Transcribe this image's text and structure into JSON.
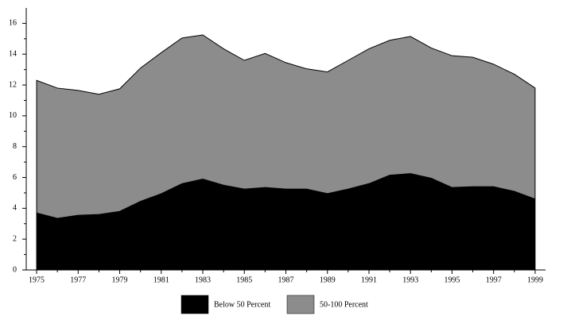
{
  "chart_data": {
    "type": "stacked_area",
    "x": [
      1975,
      1976,
      1977,
      1978,
      1979,
      1980,
      1981,
      1982,
      1983,
      1984,
      1985,
      1986,
      1987,
      1988,
      1989,
      1990,
      1991,
      1992,
      1993,
      1994,
      1995,
      1996,
      1997,
      1998,
      1999
    ],
    "series": [
      {
        "name": "Below 50 Percent",
        "color": "#000000",
        "values": [
          3.7,
          3.35,
          3.55,
          3.6,
          3.8,
          4.45,
          4.95,
          5.6,
          5.9,
          5.5,
          5.25,
          5.35,
          5.25,
          5.25,
          4.95,
          5.25,
          5.6,
          6.15,
          6.25,
          5.95,
          5.35,
          5.4,
          5.4,
          5.1,
          4.6
        ]
      },
      {
        "name": "50-100 Percent",
        "color": "#8c8c8c",
        "values": [
          8.6,
          8.45,
          8.1,
          7.8,
          7.95,
          8.65,
          9.15,
          9.45,
          9.35,
          8.85,
          8.35,
          8.7,
          8.2,
          7.8,
          7.9,
          8.35,
          8.75,
          8.75,
          8.9,
          8.45,
          8.55,
          8.4,
          7.95,
          7.6,
          7.2
        ]
      }
    ],
    "xlim": [
      1974.5,
      1999.5
    ],
    "xticks": [
      1975,
      1977,
      1979,
      1981,
      1983,
      1985,
      1987,
      1989,
      1991,
      1993,
      1995,
      1997,
      1999
    ],
    "ylim": [
      0,
      17
    ],
    "yticks": [
      0,
      2,
      4,
      6,
      8,
      10,
      12,
      14,
      16
    ],
    "legend": "bottom"
  }
}
